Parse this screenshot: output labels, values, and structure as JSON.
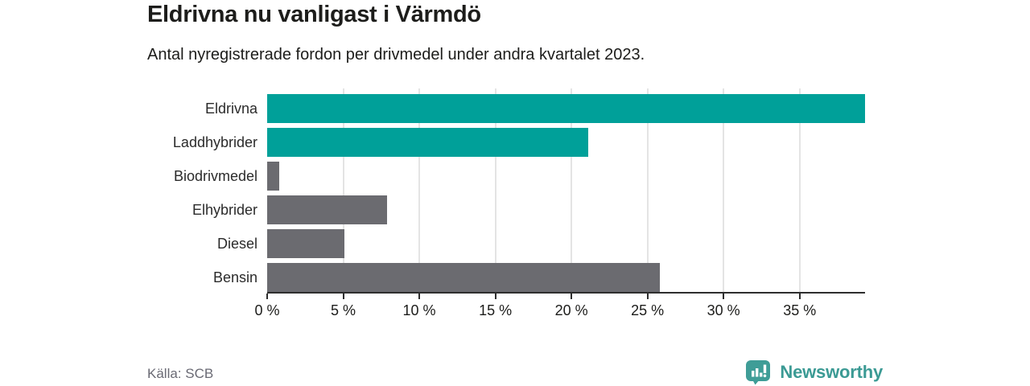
{
  "header": {
    "title": "Eldrivna nu vanligast i Värmdö",
    "subtitle": "Antal nyregistrerade fordon per drivmedel under andra kvartalet 2023."
  },
  "chart_data": {
    "type": "bar",
    "orientation": "horizontal",
    "title": "Eldrivna nu vanligast i Värmdö",
    "subtitle": "Antal nyregistrerade fordon per drivmedel under andra kvartalet 2023.",
    "categories": [
      "Eldrivna",
      "Laddhybrider",
      "Biodrivmedel",
      "Elhybrider",
      "Diesel",
      "Bensin"
    ],
    "values": [
      39.3,
      21.1,
      0.8,
      7.9,
      5.1,
      25.8
    ],
    "bar_colors": [
      "#00a099",
      "#00a099",
      "#6b6b70",
      "#6b6b70",
      "#6b6b70",
      "#6b6b70"
    ],
    "unit": "%",
    "xlabel": "",
    "ylabel": "",
    "xlim": [
      0,
      39.3
    ],
    "x_ticks": [
      0,
      5,
      10,
      15,
      20,
      25,
      30,
      35
    ],
    "x_tick_labels": [
      "0 %",
      "5 %",
      "10 %",
      "15 %",
      "20 %",
      "25 %",
      "30 %",
      "35 %"
    ],
    "grid": "vertical",
    "legend": "none",
    "accent_color": "#00a099",
    "neutral_color": "#6b6b70",
    "gridline_color": "#e4e4e4",
    "axis_color": "#2e2e2e"
  },
  "footer": {
    "source": "Källa: SCB",
    "brand": "Newsworthy",
    "brand_color": "#3b9a94"
  }
}
